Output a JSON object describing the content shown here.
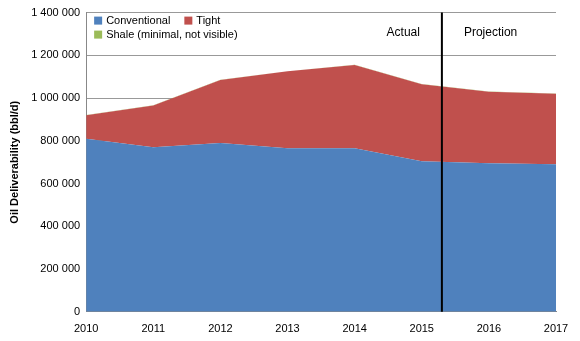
{
  "chart_data": {
    "type": "area",
    "y_label": "Oil Deliverability (bbl/d)",
    "x": [
      2010,
      2011,
      2012,
      2013,
      2014,
      2015,
      2016,
      2017
    ],
    "series": [
      {
        "name": "Conventional",
        "color": "#4F81BD",
        "values": [
          810000,
          770000,
          790000,
          765000,
          765000,
          705000,
          695000,
          690000
        ]
      },
      {
        "name": "Tight",
        "color": "#C0504D",
        "values": [
          110000,
          195000,
          295000,
          360000,
          390000,
          360000,
          335000,
          330000
        ]
      },
      {
        "name": "Shale (minimal, not visible)",
        "color": "#9BBB59",
        "values": [
          1000,
          1000,
          1000,
          1000,
          1000,
          1000,
          1000,
          1000
        ]
      }
    ],
    "stacked": true,
    "xlim": [
      2010,
      2017
    ],
    "xticks": [
      2010,
      2011,
      2012,
      2013,
      2014,
      2015,
      2016,
      2017
    ],
    "ylim": [
      0,
      1400000
    ],
    "yticks": [
      0,
      {
        "value": 200000,
        "label": "200 000"
      },
      {
        "value": 400000,
        "label": "400 000"
      },
      {
        "value": 600000,
        "label": "600 000"
      },
      {
        "value": 800000,
        "label": "800 000"
      },
      {
        "value": 1000000,
        "label": "1 000 000"
      },
      {
        "value": 1200000,
        "label": "1 200 000"
      },
      {
        "value": 1400000,
        "label": "1 400 000"
      }
    ],
    "grid": true,
    "legend": "upper left",
    "divider": {
      "x": 2015.3,
      "labels": [
        "Actual",
        "Projection"
      ]
    }
  }
}
